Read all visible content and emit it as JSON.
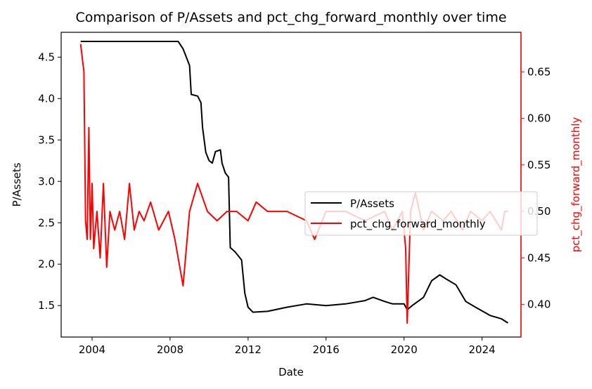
{
  "chart_data": {
    "type": "line",
    "title": "Comparison of P/Assets and pct_chg_forward_monthly over time",
    "xlabel": "Date",
    "ylabel": "P/Assets",
    "y2label": "pct_chg_forward_monthly",
    "xlim": [
      "2002-06-01",
      "2025-12-31"
    ],
    "ylim": [
      1.12,
      4.8
    ],
    "y2lim": [
      0.365,
      0.6925
    ],
    "x_ticks": [
      "2004",
      "2008",
      "2012",
      "2016",
      "2020",
      "2024"
    ],
    "y_ticks": [
      "1.5",
      "2.0",
      "2.5",
      "3.0",
      "3.5",
      "4.0",
      "4.5"
    ],
    "y2_ticks": [
      "0.40",
      "0.45",
      "0.50",
      "0.55",
      "0.60",
      "0.65"
    ],
    "legend": {
      "position": "center-right",
      "entries": [
        "P/Assets",
        "pct_chg_forward_monthly"
      ]
    },
    "grid": false,
    "colors": {
      "P/Assets": "#000000",
      "pct_chg_forward_monthly": "#ff0000",
      "right_axis": "#ff0000"
    },
    "series": [
      {
        "name": "P/Assets",
        "axis": "left",
        "color": "#000000",
        "points": [
          [
            "2003-06-01",
            4.69
          ],
          [
            "2004-06-01",
            4.69
          ],
          [
            "2006-01-01",
            4.69
          ],
          [
            "2008-06-01",
            4.69
          ],
          [
            "2008-09-01",
            4.6
          ],
          [
            "2008-11-01",
            4.5
          ],
          [
            "2009-01-01",
            4.4
          ],
          [
            "2009-02-01",
            4.05
          ],
          [
            "2009-06-01",
            4.03
          ],
          [
            "2009-08-01",
            3.95
          ],
          [
            "2009-09-01",
            3.65
          ],
          [
            "2009-11-01",
            3.35
          ],
          [
            "2010-01-01",
            3.25
          ],
          [
            "2010-03-01",
            3.22
          ],
          [
            "2010-05-01",
            3.36
          ],
          [
            "2010-08-01",
            3.38
          ],
          [
            "2010-09-01",
            3.22
          ],
          [
            "2010-11-01",
            3.1
          ],
          [
            "2011-01-01",
            3.05
          ],
          [
            "2011-02-01",
            2.2
          ],
          [
            "2011-05-01",
            2.15
          ],
          [
            "2011-09-01",
            2.05
          ],
          [
            "2011-11-01",
            1.65
          ],
          [
            "2012-01-01",
            1.48
          ],
          [
            "2012-04-01",
            1.42
          ],
          [
            "2013-01-01",
            1.43
          ],
          [
            "2014-01-01",
            1.48
          ],
          [
            "2015-01-01",
            1.52
          ],
          [
            "2016-01-01",
            1.5
          ],
          [
            "2017-01-01",
            1.52
          ],
          [
            "2018-01-01",
            1.56
          ],
          [
            "2018-06-01",
            1.6
          ],
          [
            "2019-01-01",
            1.55
          ],
          [
            "2019-06-01",
            1.52
          ],
          [
            "2020-01-01",
            1.52
          ],
          [
            "2020-03-01",
            1.45
          ],
          [
            "2020-06-01",
            1.5
          ],
          [
            "2021-01-01",
            1.6
          ],
          [
            "2021-06-01",
            1.8
          ],
          [
            "2021-11-01",
            1.87
          ],
          [
            "2022-03-01",
            1.82
          ],
          [
            "2022-09-01",
            1.75
          ],
          [
            "2023-03-01",
            1.55
          ],
          [
            "2023-09-01",
            1.48
          ],
          [
            "2024-06-01",
            1.38
          ],
          [
            "2025-01-01",
            1.34
          ],
          [
            "2025-05-01",
            1.29
          ]
        ]
      },
      {
        "name": "pct_chg_forward_monthly",
        "axis": "right",
        "color": "#ff0000",
        "points": [
          [
            "2003-06-01",
            0.68
          ],
          [
            "2003-07-01",
            0.665
          ],
          [
            "2003-08-01",
            0.65
          ],
          [
            "2003-09-01",
            0.49
          ],
          [
            "2003-10-01",
            0.47
          ],
          [
            "2003-11-01",
            0.59
          ],
          [
            "2003-12-01",
            0.47
          ],
          [
            "2004-01-01",
            0.53
          ],
          [
            "2004-02-01",
            0.46
          ],
          [
            "2004-03-01",
            0.48
          ],
          [
            "2004-04-01",
            0.5
          ],
          [
            "2004-06-01",
            0.45
          ],
          [
            "2004-08-01",
            0.53
          ],
          [
            "2004-10-01",
            0.44
          ],
          [
            "2004-12-01",
            0.5
          ],
          [
            "2005-03-01",
            0.48
          ],
          [
            "2005-06-01",
            0.5
          ],
          [
            "2005-09-01",
            0.47
          ],
          [
            "2005-12-01",
            0.53
          ],
          [
            "2006-03-01",
            0.48
          ],
          [
            "2006-06-01",
            0.5
          ],
          [
            "2006-09-01",
            0.49
          ],
          [
            "2007-01-01",
            0.51
          ],
          [
            "2007-06-01",
            0.48
          ],
          [
            "2007-12-01",
            0.5
          ],
          [
            "2008-04-01",
            0.47
          ],
          [
            "2008-09-01",
            0.42
          ],
          [
            "2009-01-01",
            0.5
          ],
          [
            "2009-06-01",
            0.53
          ],
          [
            "2009-12-01",
            0.5
          ],
          [
            "2010-06-01",
            0.49
          ],
          [
            "2010-12-01",
            0.5
          ],
          [
            "2011-06-01",
            0.5
          ],
          [
            "2012-01-01",
            0.49
          ],
          [
            "2012-06-01",
            0.51
          ],
          [
            "2013-01-01",
            0.5
          ],
          [
            "2014-01-01",
            0.5
          ],
          [
            "2015-01-01",
            0.49
          ],
          [
            "2015-06-01",
            0.47
          ],
          [
            "2016-01-01",
            0.5
          ],
          [
            "2017-01-01",
            0.5
          ],
          [
            "2018-01-01",
            0.49
          ],
          [
            "2019-01-01",
            0.5
          ],
          [
            "2019-06-01",
            0.48
          ],
          [
            "2019-12-01",
            0.5
          ],
          [
            "2020-02-01",
            0.46
          ],
          [
            "2020-03-01",
            0.38
          ],
          [
            "2020-05-01",
            0.5
          ],
          [
            "2020-08-01",
            0.52
          ],
          [
            "2021-01-01",
            0.48
          ],
          [
            "2021-06-01",
            0.5
          ],
          [
            "2022-01-01",
            0.49
          ],
          [
            "2022-06-01",
            0.5
          ],
          [
            "2023-01-01",
            0.48
          ],
          [
            "2023-06-01",
            0.5
          ],
          [
            "2024-01-01",
            0.49
          ],
          [
            "2024-06-01",
            0.5
          ],
          [
            "2025-01-01",
            0.48
          ],
          [
            "2025-03-01",
            0.5
          ],
          [
            "2025-05-01",
            0.5
          ]
        ]
      }
    ]
  }
}
